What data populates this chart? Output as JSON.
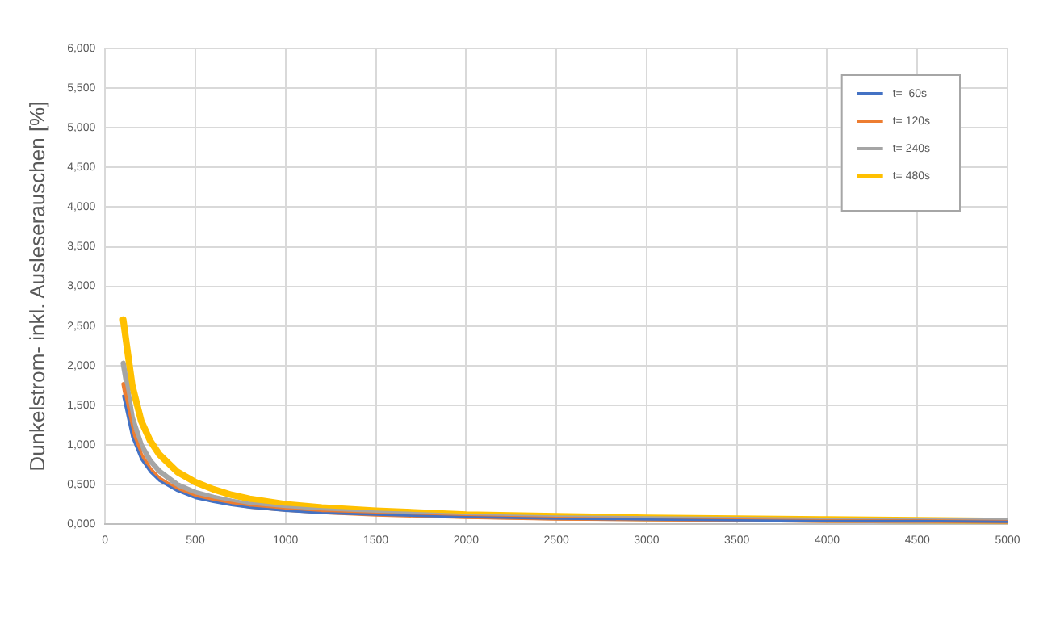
{
  "chart_data": {
    "type": "line",
    "ylabel": "Dunkelstrom- inkl. Ausleserauschen [%]",
    "x": [
      100,
      150,
      200,
      250,
      300,
      400,
      500,
      600,
      700,
      800,
      1000,
      1200,
      1500,
      2000,
      2500,
      3000,
      3500,
      4000,
      4500,
      5000
    ],
    "series": [
      {
        "name": "t=  60s",
        "color": "#4472c4",
        "values": [
          1.62,
          1.1,
          0.82,
          0.66,
          0.55,
          0.42,
          0.33,
          0.28,
          0.24,
          0.21,
          0.17,
          0.14,
          0.12,
          0.09,
          0.07,
          0.06,
          0.05,
          0.04,
          0.04,
          0.03
        ]
      },
      {
        "name": "t= 120s",
        "color": "#ed7d31",
        "values": [
          1.77,
          1.18,
          0.88,
          0.7,
          0.58,
          0.44,
          0.35,
          0.3,
          0.26,
          0.22,
          0.18,
          0.15,
          0.12,
          0.09,
          0.07,
          0.06,
          0.05,
          0.04,
          0.04,
          0.03
        ]
      },
      {
        "name": "t= 240s",
        "color": "#a5a5a5",
        "values": [
          2.03,
          1.35,
          1.0,
          0.8,
          0.67,
          0.5,
          0.4,
          0.34,
          0.29,
          0.25,
          0.2,
          0.17,
          0.14,
          0.1,
          0.08,
          0.07,
          0.06,
          0.05,
          0.04,
          0.04
        ]
      },
      {
        "name": "t= 480s",
        "color": "#ffc000",
        "values": [
          2.58,
          1.75,
          1.3,
          1.05,
          0.88,
          0.66,
          0.53,
          0.44,
          0.37,
          0.32,
          0.25,
          0.21,
          0.17,
          0.12,
          0.1,
          0.08,
          0.07,
          0.06,
          0.05,
          0.04
        ]
      }
    ],
    "xlim": [
      0,
      5000
    ],
    "xticks": [
      0,
      500,
      1000,
      1500,
      2000,
      2500,
      3000,
      3500,
      4000,
      4500,
      5000
    ],
    "ylim": [
      0,
      6
    ],
    "yticks": [
      {
        "value": 0,
        "label": "0,000"
      },
      {
        "value": 0.5,
        "label": "0,500"
      },
      {
        "value": 1,
        "label": "1,000"
      },
      {
        "value": 1.5,
        "label": "1,500"
      },
      {
        "value": 2,
        "label": "2,000"
      },
      {
        "value": 2.5,
        "label": "2,500"
      },
      {
        "value": 3,
        "label": "3,000"
      },
      {
        "value": 3.5,
        "label": "3,500"
      },
      {
        "value": 4,
        "label": "4,000"
      },
      {
        "value": 4.5,
        "label": "4,500"
      },
      {
        "value": 5,
        "label": "5,000"
      },
      {
        "value": 5.5,
        "label": "5,500"
      },
      {
        "value": 6,
        "label": "6,000"
      }
    ],
    "grid": true,
    "legend": "top right",
    "marker": "none",
    "line_style": "solid"
  }
}
